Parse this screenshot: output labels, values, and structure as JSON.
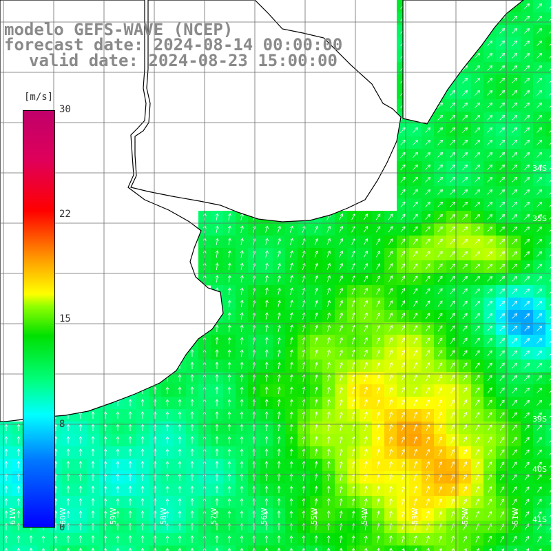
{
  "title": {
    "line1": "modelo GEFS-WAVE (NCEP)",
    "line2": "forecast date: 2024-08-14 00:00:00",
    "line3": "valid date: 2024-08-23 15:00:00"
  },
  "colorbar": {
    "unit": "[m/s]",
    "min": 0,
    "max": 30,
    "ticks": [
      "30",
      "22",
      "15",
      "8",
      "0"
    ],
    "colors": [
      "#0000ff",
      "#00ffff",
      "#00e000",
      "#ffff00",
      "#ff0000",
      "#c0006a"
    ]
  },
  "axes": {
    "lat_labels": [
      "34S",
      "35S",
      "39S",
      "40S",
      "41S"
    ],
    "lon_labels": [
      "61W",
      "60W",
      "59W",
      "58W",
      "57W",
      "56W",
      "55W",
      "54W",
      "53W",
      "52W",
      "51W"
    ]
  },
  "colors": {
    "land": "#ffffff",
    "coast": "#000000",
    "grid": "#6a6a6a",
    "arrows": "#ffffff"
  }
}
